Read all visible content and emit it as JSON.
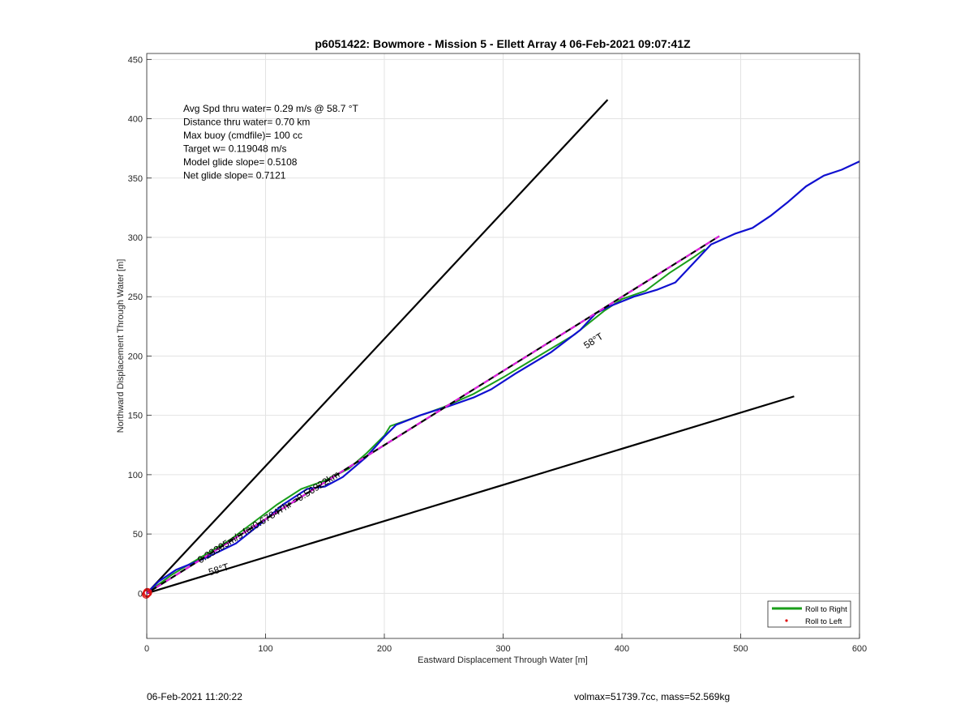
{
  "footer": {
    "left": "06-Feb-2021 11:20:22",
    "right": "volmax=51739.7cc, mass=52.569kg"
  },
  "chart_data": {
    "type": "line",
    "title": "p6051422: Bowmore - Mission 5 - Ellett Array 4 06-Feb-2021 09:07:41Z",
    "xlabel": "Eastward Displacement Through Water [m]",
    "ylabel": "Northward Displacement Through Water [m]",
    "xlim": [
      0,
      600
    ],
    "ylim": [
      -38,
      455
    ],
    "xticks": [
      0,
      100,
      200,
      300,
      400,
      500,
      600
    ],
    "yticks": [
      0,
      50,
      100,
      150,
      200,
      250,
      300,
      350,
      400,
      450
    ],
    "grid": true,
    "legend_position": "bottom-right",
    "info_lines": [
      "Avg Spd thru water=  0.29 m/s @  58.7 °T",
      "Distance thru water=  0.70 km",
      "Max buoy (cmdfile)= 100 cc",
      "Target w= 0.119048 m/s",
      "Model glide slope= 0.5108",
      "Net glide slope= 0.7121"
    ],
    "annotations": [
      {
        "text": "0.23305m/s for0.67847hr =0.56922km",
        "x": 45,
        "y": 25,
        "angle_deg": 32
      },
      {
        "text": "58°T",
        "x": 53,
        "y": 15,
        "angle_deg": 17
      },
      {
        "text": "58°T",
        "x": 370,
        "y": 206,
        "angle_deg": 32
      }
    ],
    "series": [
      {
        "name": "Roll to Right",
        "color": "#1a9e1a",
        "x": [
          0,
          20,
          45,
          70,
          90,
          110,
          130,
          150,
          170,
          185,
          200,
          205,
          225,
          250,
          275,
          300,
          330,
          360,
          385,
          400,
          420,
          440,
          460,
          470
        ],
        "y": [
          0,
          15,
          30,
          45,
          60,
          75,
          88,
          95,
          105,
          118,
          133,
          141,
          148,
          157,
          168,
          182,
          200,
          218,
          238,
          248,
          255,
          270,
          283,
          290
        ]
      },
      {
        "name": "Roll to Left",
        "color": "#e01010",
        "x": [
          0,
          0.5,
          -0.5,
          1,
          0
        ],
        "y": [
          0,
          1,
          -1,
          0.5,
          0
        ]
      },
      {
        "name": "",
        "color": "#1010d0",
        "x": [
          0,
          10,
          25,
          50,
          75,
          95,
          115,
          135,
          150,
          165,
          185,
          200,
          210,
          230,
          255,
          275,
          290,
          310,
          340,
          365,
          378,
          390,
          410,
          430,
          445,
          460,
          475,
          495,
          510,
          525,
          540,
          555,
          570,
          585,
          600
        ],
        "y": [
          0,
          10,
          20,
          30,
          42,
          58,
          75,
          88,
          90,
          98,
          115,
          132,
          142,
          150,
          158,
          165,
          172,
          185,
          203,
          222,
          236,
          242,
          250,
          256,
          262,
          278,
          294,
          303,
          308,
          318,
          330,
          343,
          352,
          357,
          364
        ]
      },
      {
        "name": "",
        "color": "#e020e0",
        "dashed": true,
        "x": [
          0,
          482
        ],
        "y": [
          0,
          301
        ]
      }
    ],
    "reference_lines": [
      {
        "x": [
          0,
          388
        ],
        "y": [
          0,
          416
        ],
        "color": "#000000"
      },
      {
        "x": [
          0,
          545
        ],
        "y": [
          0,
          166
        ],
        "color": "#000000"
      }
    ],
    "legend": [
      {
        "label": "Roll to Right",
        "color": "#1a9e1a",
        "marker": "line"
      },
      {
        "label": "Roll to Left",
        "color": "#e01010",
        "marker": "dot"
      }
    ]
  }
}
